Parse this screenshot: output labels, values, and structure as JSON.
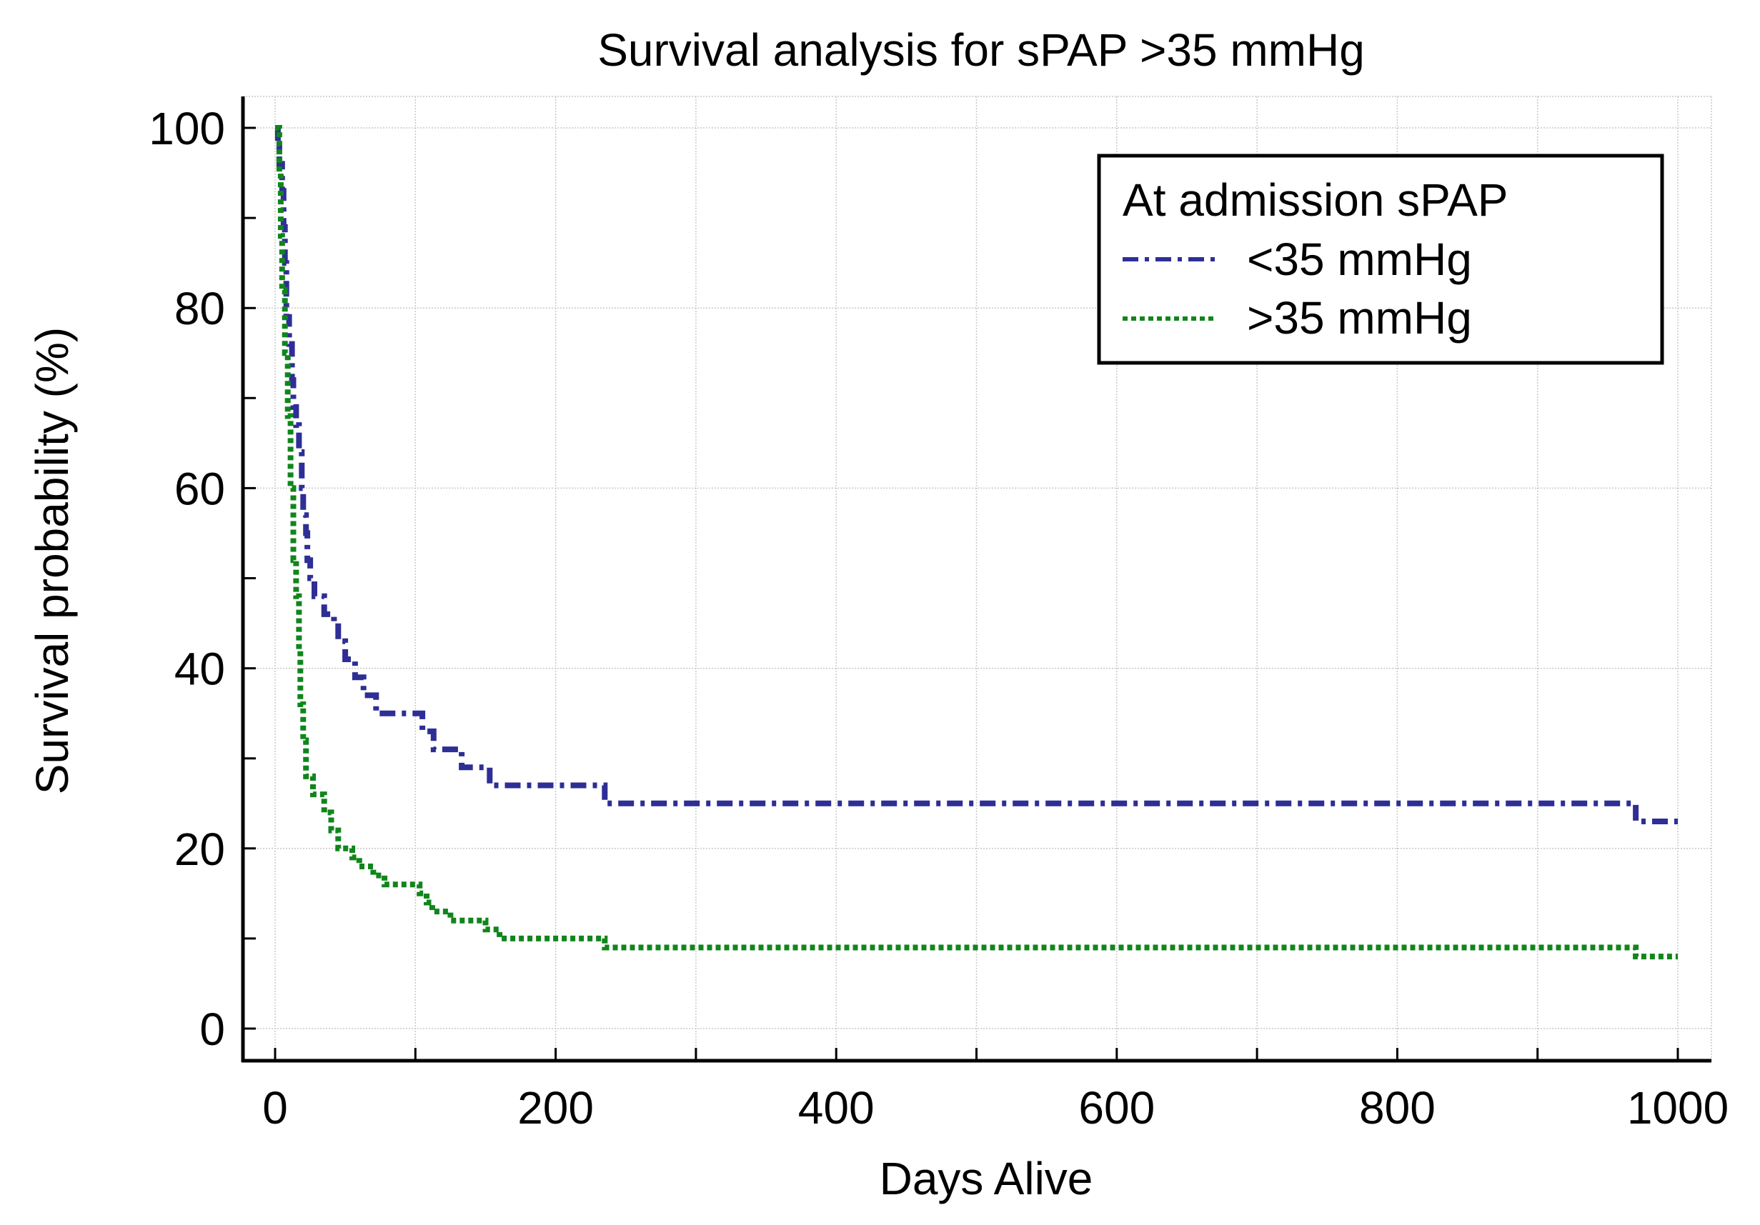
{
  "chart_data": {
    "type": "line",
    "subtype": "kaplan-meier step survival curve",
    "title": "Survival analysis for sPAP >35 mmHg",
    "xlabel": "Days Alive",
    "ylabel": "Survival probability (%)",
    "xlim": [
      0,
      1000
    ],
    "ylim": [
      0,
      100
    ],
    "xticks": [
      0,
      200,
      400,
      600,
      800,
      1000
    ],
    "yticks": [
      0,
      20,
      40,
      60,
      80,
      100
    ],
    "grid": true,
    "legend": {
      "title": "At admission sPAP",
      "position": "top-right"
    },
    "series": [
      {
        "name": "<35 mmHg",
        "color": "#2e2e96",
        "style": "dash-dot",
        "points": [
          [
            0,
            100
          ],
          [
            2,
            100
          ],
          [
            2,
            98
          ],
          [
            3,
            98
          ],
          [
            3,
            96
          ],
          [
            5,
            96
          ],
          [
            5,
            93
          ],
          [
            6,
            93
          ],
          [
            6,
            89
          ],
          [
            7,
            89
          ],
          [
            7,
            85
          ],
          [
            8,
            85
          ],
          [
            8,
            79
          ],
          [
            10,
            79
          ],
          [
            10,
            76
          ],
          [
            12,
            76
          ],
          [
            12,
            72
          ],
          [
            13,
            72
          ],
          [
            13,
            69
          ],
          [
            15,
            69
          ],
          [
            15,
            67
          ],
          [
            17,
            67
          ],
          [
            17,
            64
          ],
          [
            19,
            64
          ],
          [
            19,
            60
          ],
          [
            20,
            60
          ],
          [
            20,
            57
          ],
          [
            22,
            57
          ],
          [
            22,
            55
          ],
          [
            23,
            55
          ],
          [
            23,
            52
          ],
          [
            25,
            52
          ],
          [
            25,
            50
          ],
          [
            28,
            50
          ],
          [
            28,
            48
          ],
          [
            35,
            48
          ],
          [
            35,
            46
          ],
          [
            42,
            46
          ],
          [
            42,
            45
          ],
          [
            45,
            45
          ],
          [
            45,
            43
          ],
          [
            50,
            43
          ],
          [
            50,
            41
          ],
          [
            57,
            41
          ],
          [
            57,
            39
          ],
          [
            63,
            39
          ],
          [
            63,
            37
          ],
          [
            72,
            37
          ],
          [
            72,
            35
          ],
          [
            105,
            35
          ],
          [
            105,
            33
          ],
          [
            113,
            33
          ],
          [
            113,
            31
          ],
          [
            133,
            31
          ],
          [
            133,
            29
          ],
          [
            153,
            29
          ],
          [
            153,
            27
          ],
          [
            235,
            27
          ],
          [
            235,
            25
          ],
          [
            970,
            25
          ],
          [
            970,
            23
          ],
          [
            1000,
            23
          ]
        ]
      },
      {
        "name": ">35 mmHg",
        "color": "#11851c",
        "style": "dotted",
        "points": [
          [
            0,
            100
          ],
          [
            3,
            100
          ],
          [
            3,
            95
          ],
          [
            4,
            95
          ],
          [
            4,
            88
          ],
          [
            5,
            88
          ],
          [
            5,
            82
          ],
          [
            7,
            82
          ],
          [
            7,
            75
          ],
          [
            9,
            75
          ],
          [
            9,
            68
          ],
          [
            11,
            68
          ],
          [
            11,
            60
          ],
          [
            13,
            60
          ],
          [
            13,
            52
          ],
          [
            15,
            52
          ],
          [
            15,
            48
          ],
          [
            17,
            48
          ],
          [
            17,
            42
          ],
          [
            18,
            42
          ],
          [
            18,
            36
          ],
          [
            20,
            36
          ],
          [
            20,
            32
          ],
          [
            22,
            32
          ],
          [
            22,
            28
          ],
          [
            27,
            28
          ],
          [
            27,
            26
          ],
          [
            35,
            26
          ],
          [
            35,
            24
          ],
          [
            40,
            24
          ],
          [
            40,
            22
          ],
          [
            45,
            22
          ],
          [
            45,
            20
          ],
          [
            55,
            20
          ],
          [
            55,
            19
          ],
          [
            60,
            19
          ],
          [
            60,
            18
          ],
          [
            70,
            18
          ],
          [
            70,
            17
          ],
          [
            78,
            17
          ],
          [
            78,
            16
          ],
          [
            103,
            16
          ],
          [
            103,
            15
          ],
          [
            108,
            15
          ],
          [
            108,
            14
          ],
          [
            112,
            14
          ],
          [
            112,
            13
          ],
          [
            125,
            13
          ],
          [
            125,
            12
          ],
          [
            150,
            12
          ],
          [
            150,
            11
          ],
          [
            160,
            11
          ],
          [
            160,
            10
          ],
          [
            235,
            10
          ],
          [
            235,
            9
          ],
          [
            970,
            9
          ],
          [
            970,
            8
          ],
          [
            1000,
            8
          ]
        ]
      }
    ]
  }
}
